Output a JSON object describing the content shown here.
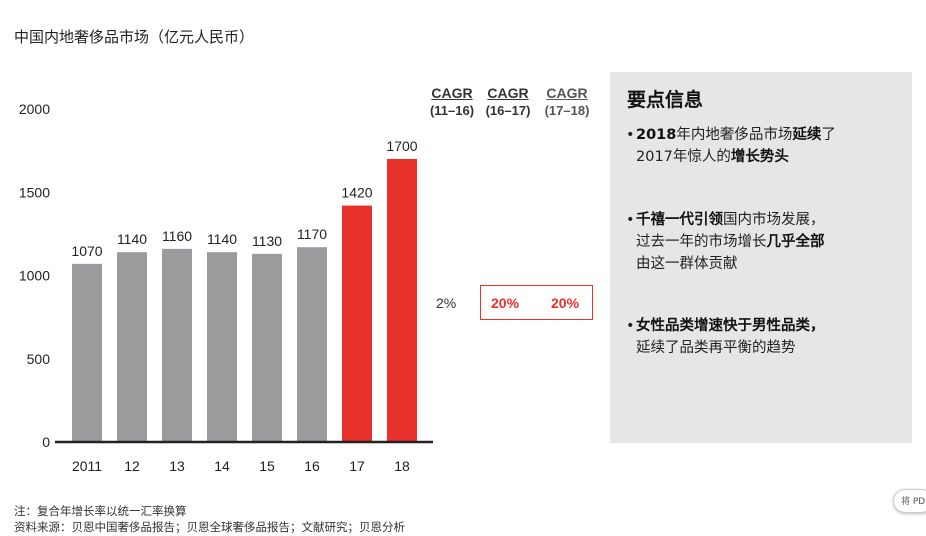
{
  "title": "中国内地奢侈品市场（亿元人民币）",
  "chart_data": {
    "type": "bar",
    "categories": [
      "2011",
      "12",
      "13",
      "14",
      "15",
      "16",
      "17",
      "18"
    ],
    "values": [
      1070,
      1140,
      1160,
      1140,
      1130,
      1170,
      1420,
      1700
    ],
    "highlight_categories": [
      "17",
      "18"
    ],
    "ylim": [
      0,
      2000
    ],
    "yticks": [
      "0",
      "500",
      "1000",
      "1500",
      "2000"
    ],
    "grid": false,
    "colors": {
      "normal": "#9b9b9d",
      "highlight": "#e8312a",
      "axis": "#222222"
    }
  },
  "cagr": {
    "headers": [
      {
        "label": "CAGR",
        "period": "(11–16)"
      },
      {
        "label": "CAGR",
        "period": "(16–17)"
      },
      {
        "label": "CAGR",
        "period": "(17–18)"
      }
    ],
    "values": [
      "2%",
      "20%",
      "20%"
    ]
  },
  "panel": {
    "title": "要点信息",
    "point1": {
      "b1": "2018",
      "t1": "年内地奢侈品市场",
      "b2": "延续",
      "t2": "了",
      "t3": "2017年惊人的",
      "b3": "增长势头"
    },
    "point2": {
      "b1": "千禧一代引领",
      "t1": "国内市场发展，",
      "t2": "过去一年的市场增长",
      "b2": "几乎全部",
      "t3": "由这一群体贡献"
    },
    "point3": {
      "b1": "女性品类增速快于男性品类，",
      "t1": "延续了品类再平衡的趋势"
    }
  },
  "notes": {
    "line1": "注：复合年增长率以统一汇率换算",
    "line2": "资料来源：贝恩中国奢侈品报告；贝恩全球奢侈品报告；文献研究；贝恩分析"
  },
  "pdf_tab": "将 PD"
}
